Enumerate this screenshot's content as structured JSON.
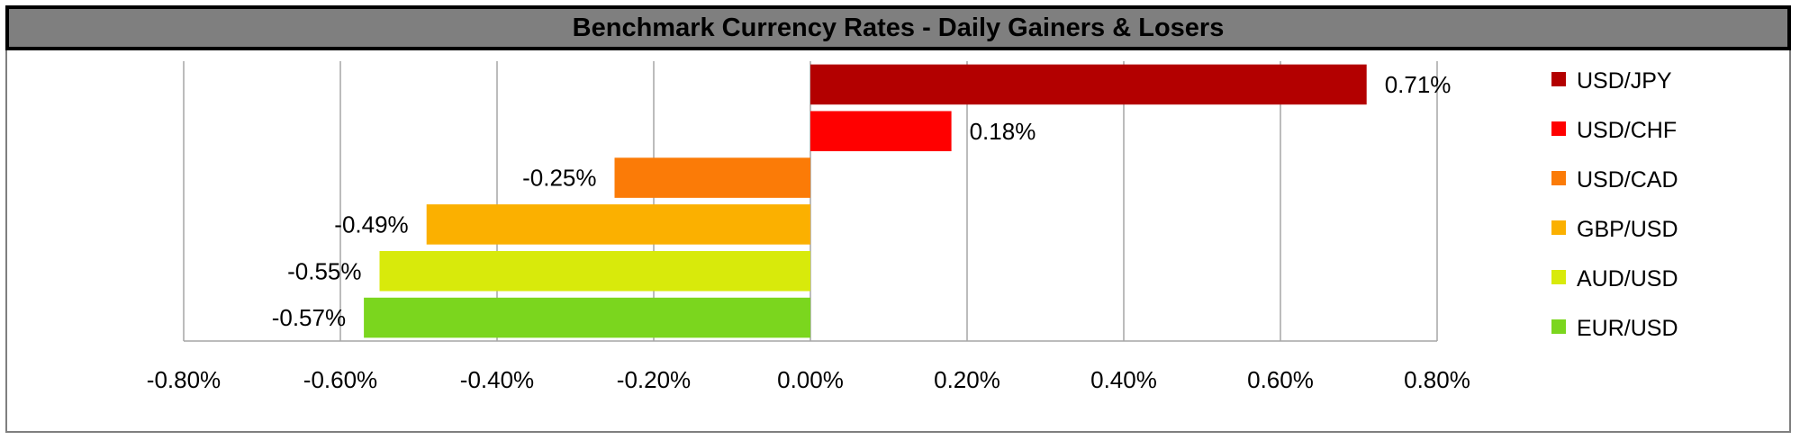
{
  "chart_data": {
    "type": "bar",
    "orientation": "horizontal",
    "title": "Benchmark Currency Rates - Daily Gainers & Losers",
    "categories": [
      "USD/JPY",
      "USD/CHF",
      "USD/CAD",
      "GBP/USD",
      "AUD/USD",
      "EUR/USD"
    ],
    "values": [
      0.71,
      0.18,
      -0.25,
      -0.49,
      -0.55,
      -0.57
    ],
    "value_labels": [
      "0.71%",
      "0.18%",
      "-0.25%",
      "-0.49%",
      "-0.55%",
      "-0.57%"
    ],
    "colors": [
      "#b30000",
      "#ff0000",
      "#fb7b07",
      "#fbb000",
      "#d8ea0b",
      "#7bd61e"
    ],
    "xlim": [
      -0.8,
      0.8
    ],
    "x_ticks": [
      -0.8,
      -0.6,
      -0.4,
      -0.2,
      0.0,
      0.2,
      0.4,
      0.6,
      0.8
    ],
    "x_tick_labels": [
      "-0.80%",
      "-0.60%",
      "-0.40%",
      "-0.20%",
      "0.00%",
      "0.20%",
      "0.40%",
      "0.60%",
      "0.80%"
    ],
    "grid": true,
    "legend_position": "right",
    "xlabel": "",
    "ylabel": ""
  }
}
